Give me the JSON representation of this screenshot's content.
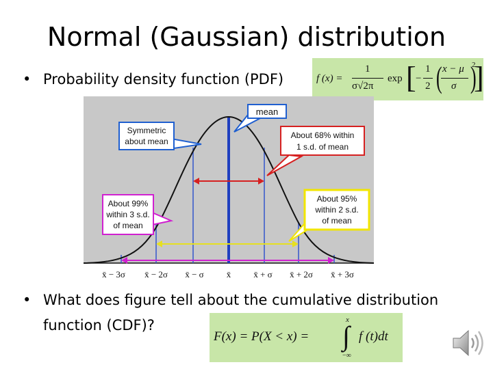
{
  "slide": {
    "title": "Normal (Gaussian) distribution",
    "bullet_1": "Probability density function (PDF)",
    "bullet_2_line1": "What does figure tell about the cumulative distribution",
    "bullet_2_line2": "function (CDF)?"
  },
  "pdf_formula": {
    "lhs": "f (x) =",
    "num": "1",
    "den": "σ√2π",
    "exp": "exp",
    "inner_num": "1",
    "inner_den": "2",
    "frac_num": "x − μ",
    "frac_den": "σ",
    "power": "2"
  },
  "cdf_formula": {
    "lhs": "F(x) = P(X < x) =",
    "upper": "x",
    "lower": "−∞",
    "integrand": "f (t)dt"
  },
  "figure": {
    "callouts": {
      "mean": "mean",
      "symmetric": [
        "Symmetric",
        "about mean"
      ],
      "within68": [
        "About 68% within",
        "1 s.d. of mean"
      ],
      "within95": [
        "About 95%",
        "within 2 s.d.",
        "of mean"
      ],
      "within99": [
        "About 99%",
        "within 3 s.d.",
        "of mean"
      ]
    },
    "tick_labels": [
      "x̄ − 3σ",
      "x̄ − 2σ",
      "x̄ − σ",
      "x̄",
      "x̄ + σ",
      "x̄ + 2σ",
      "x̄ + 3σ"
    ],
    "colors": {
      "curve": "#111111",
      "mean_line": "#1f3fbf",
      "sd_lines": "#3355cc",
      "arrow_68": "#d62020",
      "arrow_95": "#e6e020",
      "arrow_99": "#d020d0",
      "callout_blue": "#1f5fd0",
      "callout_red": "#d62020",
      "callout_yellow": "#f2e600",
      "callout_magenta": "#d020d0",
      "plot_bg": "#c8c8c8"
    }
  }
}
